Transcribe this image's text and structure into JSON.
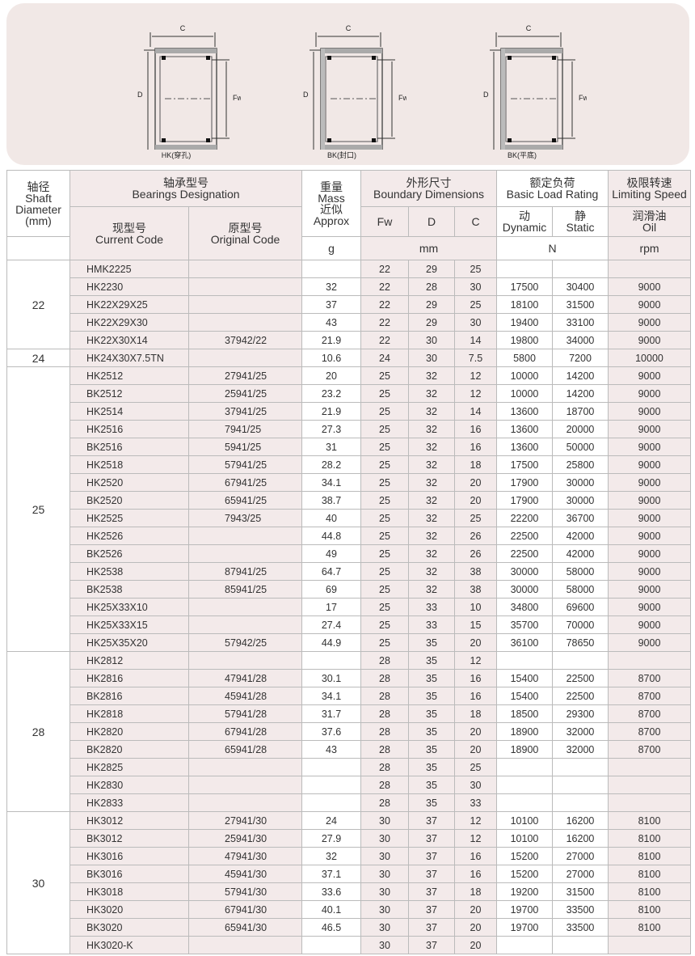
{
  "figures": [
    {
      "label": "HK(穿孔)"
    },
    {
      "label": "BK(封口)"
    },
    {
      "label": "BK(平底)"
    }
  ],
  "dim_labels": {
    "c": "C",
    "d": "D",
    "fw": "Fw"
  },
  "header": {
    "shaft": [
      "轴径",
      "Shaft",
      "Diameter",
      "(mm)"
    ],
    "designation": [
      "轴承型号",
      "Bearings Designation"
    ],
    "current": [
      "现型号",
      "Current Code"
    ],
    "original": [
      "原型号",
      "Original Code"
    ],
    "mass": [
      "重量",
      "Mass",
      "近似",
      "Approx"
    ],
    "mass_unit": "g",
    "boundary": [
      "外形尺寸",
      "Boundary Dimensions"
    ],
    "fw": "Fw",
    "d": "D",
    "c": "C",
    "dim_unit": "mm",
    "load": [
      "额定负荷",
      "Basic Load Rating"
    ],
    "dynamic": [
      "动",
      "Dynamic"
    ],
    "static": [
      "静",
      "Static"
    ],
    "load_unit": "N",
    "speed": [
      "极限转速",
      "Limiting Speed"
    ],
    "oil": [
      "润滑油",
      "Oil"
    ],
    "speed_unit": "rpm"
  },
  "groups": [
    {
      "shaft": "22",
      "rows": [
        [
          "HMK2225",
          "",
          "",
          "22",
          "29",
          "25",
          "",
          "",
          ""
        ],
        [
          "HK2230",
          "",
          "32",
          "22",
          "28",
          "30",
          "17500",
          "30400",
          "9000"
        ],
        [
          "HK22X29X25",
          "",
          "37",
          "22",
          "29",
          "25",
          "18100",
          "31500",
          "9000"
        ],
        [
          "HK22X29X30",
          "",
          "43",
          "22",
          "29",
          "30",
          "19400",
          "33100",
          "9000"
        ],
        [
          "HK22X30X14",
          "37942/22",
          "21.9",
          "22",
          "30",
          "14",
          "19800",
          "34000",
          "9000"
        ]
      ]
    },
    {
      "shaft": "24",
      "rows": [
        [
          "HK24X30X7.5TN",
          "",
          "10.6",
          "24",
          "30",
          "7.5",
          "5800",
          "7200",
          "10000"
        ]
      ]
    },
    {
      "shaft": "25",
      "rows": [
        [
          "HK2512",
          "27941/25",
          "20",
          "25",
          "32",
          "12",
          "10000",
          "14200",
          "9000"
        ],
        [
          "BK2512",
          "25941/25",
          "23.2",
          "25",
          "32",
          "12",
          "10000",
          "14200",
          "9000"
        ],
        [
          "HK2514",
          "37941/25",
          "21.9",
          "25",
          "32",
          "14",
          "13600",
          "18700",
          "9000"
        ],
        [
          "HK2516",
          "7941/25",
          "27.3",
          "25",
          "32",
          "16",
          "13600",
          "20000",
          "9000"
        ],
        [
          "BK2516",
          "5941/25",
          "31",
          "25",
          "32",
          "16",
          "13600",
          "50000",
          "9000"
        ],
        [
          "HK2518",
          "57941/25",
          "28.2",
          "25",
          "32",
          "18",
          "17500",
          "25800",
          "9000"
        ],
        [
          "HK2520",
          "67941/25",
          "34.1",
          "25",
          "32",
          "20",
          "17900",
          "30000",
          "9000"
        ],
        [
          "BK2520",
          "65941/25",
          "38.7",
          "25",
          "32",
          "20",
          "17900",
          "30000",
          "9000"
        ],
        [
          "HK2525",
          "7943/25",
          "40",
          "25",
          "32",
          "25",
          "22200",
          "36700",
          "9000"
        ],
        [
          "HK2526",
          "",
          "44.8",
          "25",
          "32",
          "26",
          "22500",
          "42000",
          "9000"
        ],
        [
          "BK2526",
          "",
          "49",
          "25",
          "32",
          "26",
          "22500",
          "42000",
          "9000"
        ],
        [
          "HK2538",
          "87941/25",
          "64.7",
          "25",
          "32",
          "38",
          "30000",
          "58000",
          "9000"
        ],
        [
          "BK2538",
          "85941/25",
          "69",
          "25",
          "32",
          "38",
          "30000",
          "58000",
          "9000"
        ],
        [
          "HK25X33X10",
          "",
          "17",
          "25",
          "33",
          "10",
          "34800",
          "69600",
          "9000"
        ],
        [
          "HK25X33X15",
          "",
          "27.4",
          "25",
          "33",
          "15",
          "35700",
          "70000",
          "9000"
        ],
        [
          "HK25X35X20",
          "57942/25",
          "44.9",
          "25",
          "35",
          "20",
          "36100",
          "78650",
          "9000"
        ]
      ]
    },
    {
      "shaft": "28",
      "rows": [
        [
          "HK2812",
          "",
          "",
          "28",
          "35",
          "12",
          "",
          "",
          ""
        ],
        [
          "HK2816",
          "47941/28",
          "30.1",
          "28",
          "35",
          "16",
          "15400",
          "22500",
          "8700"
        ],
        [
          "BK2816",
          "45941/28",
          "34.1",
          "28",
          "35",
          "16",
          "15400",
          "22500",
          "8700"
        ],
        [
          "HK2818",
          "57941/28",
          "31.7",
          "28",
          "35",
          "18",
          "18500",
          "29300",
          "8700"
        ],
        [
          "HK2820",
          "67941/28",
          "37.6",
          "28",
          "35",
          "20",
          "18900",
          "32000",
          "8700"
        ],
        [
          "BK2820",
          "65941/28",
          "43",
          "28",
          "35",
          "20",
          "18900",
          "32000",
          "8700"
        ],
        [
          "HK2825",
          "",
          "",
          "28",
          "35",
          "25",
          "",
          "",
          ""
        ],
        [
          "HK2830",
          "",
          "",
          "28",
          "35",
          "30",
          "",
          "",
          ""
        ],
        [
          "HK2833",
          "",
          "",
          "28",
          "35",
          "33",
          "",
          "",
          ""
        ]
      ]
    },
    {
      "shaft": "30",
      "rows": [
        [
          "HK3012",
          "27941/30",
          "24",
          "30",
          "37",
          "12",
          "10100",
          "16200",
          "8100"
        ],
        [
          "BK3012",
          "25941/30",
          "27.9",
          "30",
          "37",
          "12",
          "10100",
          "16200",
          "8100"
        ],
        [
          "HK3016",
          "47941/30",
          "32",
          "30",
          "37",
          "16",
          "15200",
          "27000",
          "8100"
        ],
        [
          "BK3016",
          "45941/30",
          "37.1",
          "30",
          "37",
          "16",
          "15200",
          "27000",
          "8100"
        ],
        [
          "HK3018",
          "57941/30",
          "33.6",
          "30",
          "37",
          "18",
          "19200",
          "31500",
          "8100"
        ],
        [
          "HK3020",
          "67941/30",
          "40.1",
          "30",
          "37",
          "20",
          "19700",
          "33500",
          "8100"
        ],
        [
          "BK3020",
          "65941/30",
          "46.5",
          "30",
          "37",
          "20",
          "19700",
          "33500",
          "8100"
        ],
        [
          "HK3020-K",
          "",
          "",
          "30",
          "37",
          "20",
          "",
          "",
          ""
        ]
      ]
    }
  ]
}
